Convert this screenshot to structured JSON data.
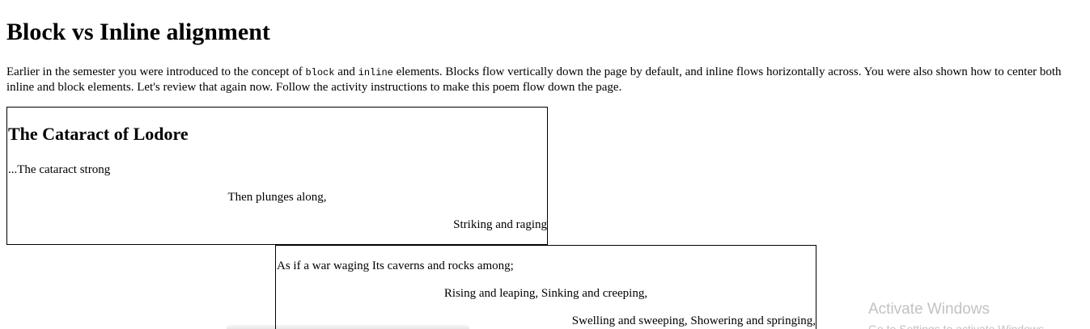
{
  "page": {
    "title": "Block vs Inline alignment"
  },
  "intro": {
    "text_1": "Earlier in the semester you were introduced to the concept of ",
    "code_block": "block",
    "text_2": " and ",
    "code_inline": "inline",
    "text_3": " elements. Blocks flow vertically down the page by default, and inline flows horizontally across. You were also shown how to center both inline and block elements. Let's review that again now. Follow the activity instructions to make this poem flow down the page."
  },
  "poem": {
    "heading": "The Cataract of Lodore",
    "box1_lines": [
      "...The cataract strong",
      "Then plunges along,",
      "Striking and raging"
    ],
    "box2_lines": [
      "As if a war waging Its caverns and rocks among;",
      "Rising and leaping, Sinking and creeping,",
      "Swelling and sweeping, Showering and springing,"
    ]
  },
  "watermark": {
    "title": "Activate Windows",
    "subtitle": "Go to Settings to activate Windows."
  }
}
